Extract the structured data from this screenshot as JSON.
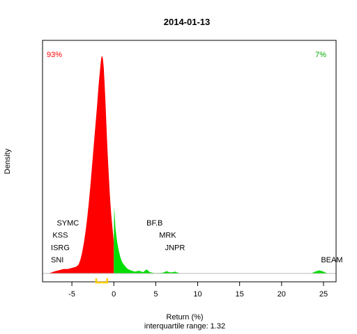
{
  "chart_data": {
    "type": "area",
    "title": "2014-01-13",
    "xlabel": "Return (%)",
    "ylabel": "Density",
    "subtitle": "interquartile range: 1.32",
    "xlim": [
      -8.5,
      26.5
    ],
    "ylim": [
      0,
      1.0
    ],
    "x_ticks": [
      -5,
      0,
      5,
      10,
      15,
      20,
      25
    ],
    "x_tick_labels": [
      "-5",
      "0",
      "5",
      "10",
      "15",
      "20",
      "25"
    ],
    "split_at": 0,
    "negative_share_label": "93%",
    "positive_share_label": "7%",
    "negative_color": "#ff0000",
    "positive_color": "#00dd00",
    "iqr_color": "#ffcc00",
    "iqr": [
      -2.1,
      -0.78
    ],
    "density": {
      "x": [
        -7.8,
        -7.0,
        -6.5,
        -6.0,
        -5.5,
        -5.0,
        -4.5,
        -4.2,
        -4.0,
        -3.8,
        -3.6,
        -3.4,
        -3.2,
        -3.0,
        -2.8,
        -2.6,
        -2.4,
        -2.2,
        -2.0,
        -1.8,
        -1.6,
        -1.5,
        -1.4,
        -1.3,
        -1.2,
        -1.1,
        -1.0,
        -0.9,
        -0.8,
        -0.7,
        -0.6,
        -0.5,
        -0.4,
        -0.3,
        -0.2,
        -0.1,
        0.0,
        0.05,
        0.2,
        0.4,
        0.6,
        0.8,
        1.0,
        1.3,
        1.6,
        2.0,
        2.5,
        3.0,
        3.5,
        3.9,
        4.3,
        4.8,
        5.3,
        5.8,
        6.3,
        6.6,
        6.9,
        7.3,
        7.6,
        7.9,
        8.5,
        10.0,
        15.0,
        20.0,
        23.5,
        24.0,
        24.5,
        25.0,
        25.5,
        26.0
      ],
      "y": [
        0.0,
        0.01,
        0.015,
        0.02,
        0.02,
        0.025,
        0.03,
        0.04,
        0.06,
        0.09,
        0.13,
        0.18,
        0.24,
        0.31,
        0.39,
        0.48,
        0.57,
        0.66,
        0.75,
        0.85,
        0.93,
        0.965,
        0.975,
        0.96,
        0.92,
        0.85,
        0.77,
        0.68,
        0.59,
        0.51,
        0.44,
        0.37,
        0.31,
        0.26,
        0.22,
        0.18,
        0.14,
        0.3,
        0.2,
        0.14,
        0.1,
        0.07,
        0.05,
        0.035,
        0.022,
        0.014,
        0.008,
        0.012,
        0.006,
        0.018,
        0.006,
        0.002,
        0.002,
        0.003,
        0.01,
        0.006,
        0.005,
        0.008,
        0.004,
        0.001,
        0.0,
        0.0,
        0.0,
        0.0,
        0.0,
        0.008,
        0.014,
        0.008,
        0.0,
        0.0
      ]
    },
    "annotations": [
      {
        "label": "SYMC",
        "x": -6.8,
        "y": 0.215
      },
      {
        "label": "KSS",
        "x": -7.3,
        "y": 0.16
      },
      {
        "label": "ISRG",
        "x": -7.5,
        "y": 0.105
      },
      {
        "label": "SNI",
        "x": -7.5,
        "y": 0.05
      },
      {
        "label": "BF.B",
        "x": 3.9,
        "y": 0.215
      },
      {
        "label": "MRK",
        "x": 5.4,
        "y": 0.16
      },
      {
        "label": "JNPR",
        "x": 6.1,
        "y": 0.105
      },
      {
        "label": "BEAM",
        "x": 24.7,
        "y": 0.05
      }
    ]
  }
}
